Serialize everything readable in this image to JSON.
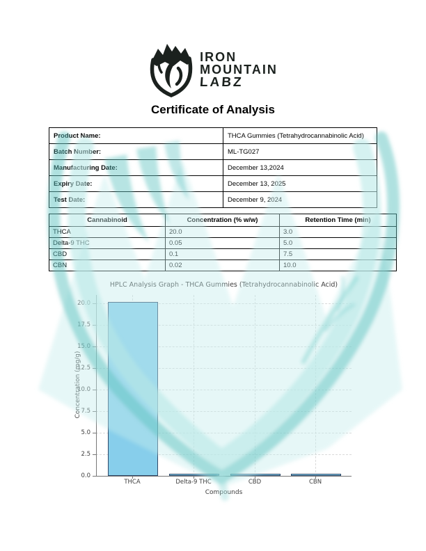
{
  "logo": {
    "line1": "IRON",
    "line2": "MOUNTAIN",
    "line3": "LABZ",
    "emblem_icon": "mountain-shield-icon",
    "color": "#1b211e"
  },
  "page": {
    "title": "Certificate of Analysis"
  },
  "info_table": {
    "rows": [
      {
        "label": "Product Name:",
        "value": "THCA Gummies (Tetrahydrocannabinolic Acid)"
      },
      {
        "label": "Batch Number:",
        "value": "ML-TG027"
      },
      {
        "label": "Manufacturing Date:",
        "value": "December 13,2024"
      },
      {
        "label": "Expiry Date:",
        "value": "December 13, 2025"
      },
      {
        "label": "Test Date:",
        "value": "December 9, 2024"
      }
    ]
  },
  "results_table": {
    "headers": [
      "Cannabinoid",
      "Concentration (% w/w)",
      "Retention Time (min)"
    ],
    "rows": [
      [
        "THCA",
        "20.0",
        "3.0"
      ],
      [
        "Delta-9 THC",
        "0.05",
        "5.0"
      ],
      [
        "CBD",
        "0.1",
        "7.5"
      ],
      [
        "CBN",
        "0.02",
        "10.0"
      ]
    ]
  },
  "chart_data": {
    "type": "bar",
    "title": "HPLC Analysis Graph - THCA Gummies (Tetrahydrocannabinolic Acid)",
    "categories": [
      "THCA",
      "Delta-9 THC",
      "CBD",
      "CBN"
    ],
    "values": [
      20.0,
      0.05,
      0.1,
      0.02
    ],
    "xlabel": "Compounds",
    "ylabel": "Concentration (mg/g)",
    "ylim": [
      0,
      21
    ],
    "yticks": [
      "0.0",
      "2.5",
      "5.0",
      "7.5",
      "10.0",
      "12.5",
      "15.0",
      "17.5",
      "20.0"
    ],
    "grid": "dashed",
    "legend": "none",
    "bar_color": "#87CEEB",
    "bar_edge_color": "#2f4868"
  },
  "colors": {
    "watermark_light": "#b9e9e7",
    "watermark_medium": "#5fc3c2",
    "table_border": "#000000",
    "chart_text": "#3d3d3d"
  }
}
